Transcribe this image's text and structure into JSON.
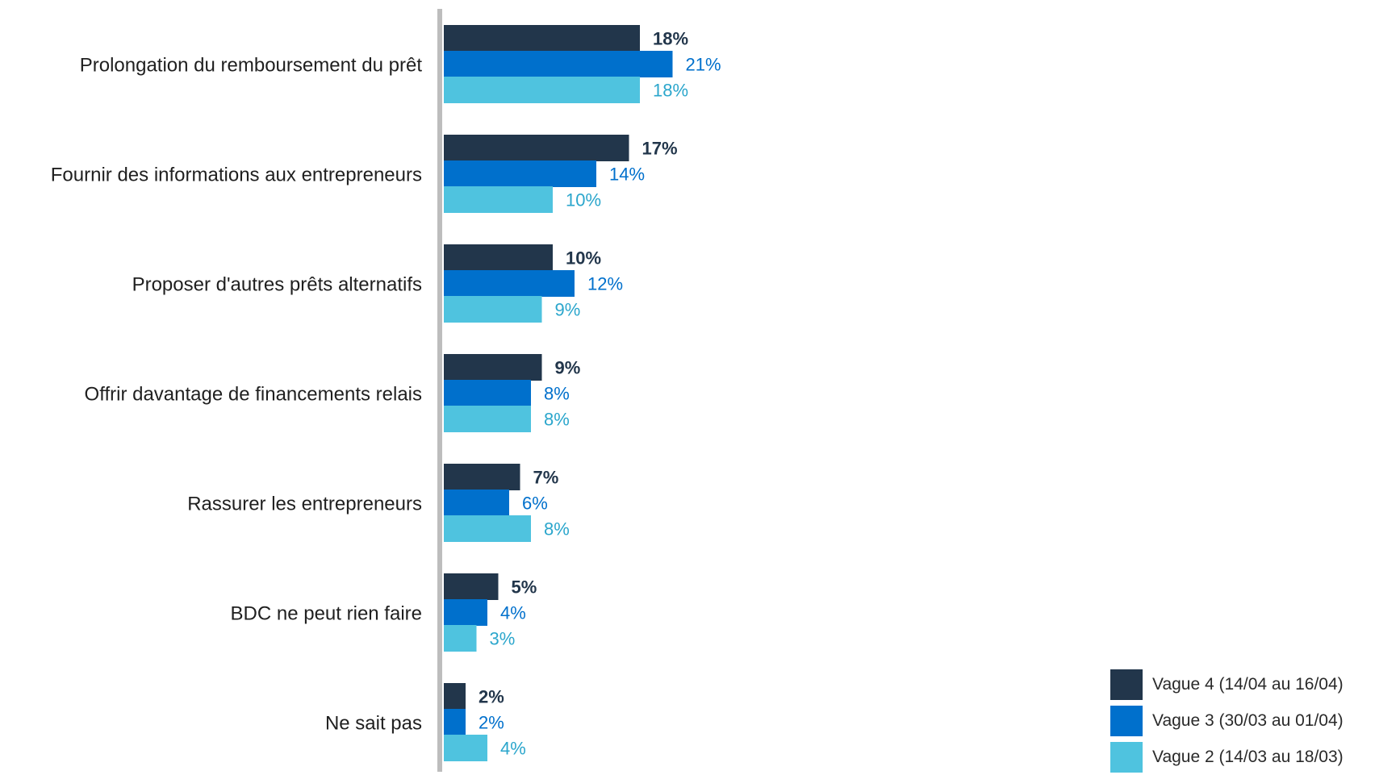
{
  "chart_data": {
    "type": "bar",
    "orientation": "horizontal",
    "categories": [
      "Prolongation du remboursement du prêt",
      "Fournir des informations aux entrepreneurs",
      "Proposer d'autres prêts alternatifs",
      "Offrir davantage de financements relais",
      "Rassurer les entrepreneurs",
      "BDC ne peut rien faire",
      "Ne sait pas"
    ],
    "series": [
      {
        "name": "Vague 4 (14/04 au 16/04)",
        "color": "#22364b",
        "label_color": "#22364b",
        "bold_labels": true,
        "values": [
          18,
          17,
          10,
          9,
          7,
          5,
          2
        ],
        "labels": [
          "18%",
          "17%",
          "10%",
          "9%",
          "7%",
          "5%",
          "2%"
        ]
      },
      {
        "name": "Vague 3 (30/03 au 01/04)",
        "color": "#0070cc",
        "label_color": "#0070cc",
        "bold_labels": false,
        "values": [
          21,
          14,
          12,
          8,
          6,
          4,
          2
        ],
        "labels": [
          "21%",
          "14%",
          "12%",
          "8%",
          "6%",
          "4%",
          "2%"
        ]
      },
      {
        "name": "Vague 2 (14/03 au 18/03)",
        "color": "#4fc3df",
        "label_color": "#2ba6cc",
        "bold_labels": false,
        "values": [
          18,
          10,
          9,
          8,
          8,
          3,
          4
        ],
        "labels": [
          "18%",
          "10%",
          "9%",
          "8%",
          "8%",
          "3%",
          "4%"
        ]
      }
    ],
    "value_unit": "%",
    "legend_position": "bottom-right",
    "grid": false,
    "axis_line_color": "#bdbdbd"
  }
}
